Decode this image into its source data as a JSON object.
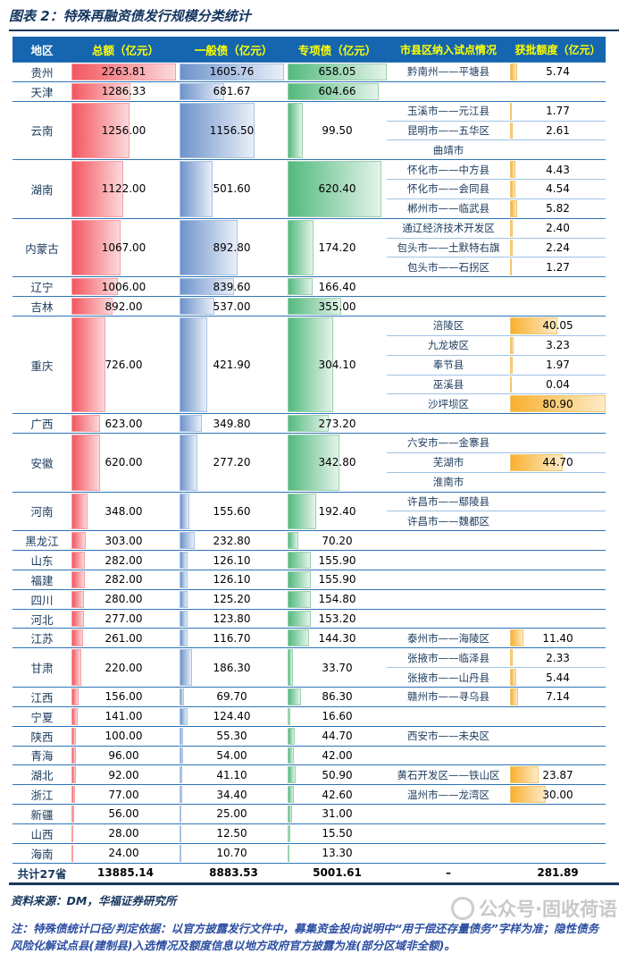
{
  "title": "图表 2：特殊再融资债发行规模分类统计",
  "columns": [
    "地区",
    "总额（亿元）",
    "一般债（亿元）",
    "专项债（亿元）",
    "市县区纳入试点情况",
    "获批额度（亿元）"
  ],
  "colors": {
    "header_bg": "#1566AF",
    "header_text": "#FFFF00",
    "header_first_text": "#FFFFFF",
    "total_bar": "#F3565F",
    "general_bar": "#6E93CB",
    "special_bar": "#52BA7E",
    "quota_bar": "#F9B02F",
    "row_divider": "#2E75B6",
    "sub_divider": "#9DC3E6",
    "title_color": "#14355F",
    "note_color": "#2B4EA2"
  },
  "chart_data": {
    "type": "table",
    "title": "图表 2：特殊再融资债发行规模分类统计",
    "bar_max": {
      "total": 2263.81,
      "general": 1605.76,
      "special": 658.05,
      "quota": 80.9
    },
    "regions": [
      {
        "name": "贵州",
        "total": "2263.81",
        "general": "1605.76",
        "special": "658.05",
        "pilots": [
          {
            "name": "黔南州——平塘县",
            "quota": "5.74"
          }
        ]
      },
      {
        "name": "天津",
        "total": "1286.33",
        "general": "681.67",
        "special": "604.66",
        "pilots": []
      },
      {
        "name": "云南",
        "total": "1256.00",
        "general": "1156.50",
        "special": "99.50",
        "pilots": [
          {
            "name": "玉溪市——元江县",
            "quota": "1.77"
          },
          {
            "name": "昆明市——五华区",
            "quota": "2.61"
          },
          {
            "name": "曲靖市",
            "quota": ""
          }
        ]
      },
      {
        "name": "湖南",
        "total": "1122.00",
        "general": "501.60",
        "special": "620.40",
        "pilots": [
          {
            "name": "怀化市——中方县",
            "quota": "4.43"
          },
          {
            "name": "怀化市——会同县",
            "quota": "4.54"
          },
          {
            "name": "郴州市——临武县",
            "quota": "5.82"
          }
        ]
      },
      {
        "name": "内蒙古",
        "total": "1067.00",
        "general": "892.80",
        "special": "174.20",
        "pilots": [
          {
            "name": "通辽经济技术开发区",
            "quota": "2.40"
          },
          {
            "name": "包头市——土默特右旗",
            "quota": "2.24"
          },
          {
            "name": "包头市——石拐区",
            "quota": "1.27"
          }
        ]
      },
      {
        "name": "辽宁",
        "total": "1006.00",
        "general": "839.60",
        "special": "166.40",
        "pilots": []
      },
      {
        "name": "吉林",
        "total": "892.00",
        "general": "537.00",
        "special": "355.00",
        "pilots": []
      },
      {
        "name": "重庆",
        "total": "726.00",
        "general": "421.90",
        "special": "304.10",
        "pilots": [
          {
            "name": "涪陵区",
            "quota": "40.05"
          },
          {
            "name": "九龙坡区",
            "quota": "3.23"
          },
          {
            "name": "奉节县",
            "quota": "1.97"
          },
          {
            "name": "巫溪县",
            "quota": "0.04"
          },
          {
            "name": "沙坪坝区",
            "quota": "80.90"
          }
        ]
      },
      {
        "name": "广西",
        "total": "623.00",
        "general": "349.80",
        "special": "273.20",
        "pilots": []
      },
      {
        "name": "安徽",
        "total": "620.00",
        "general": "277.20",
        "special": "342.80",
        "pilots": [
          {
            "name": "六安市——金寨县",
            "quota": ""
          },
          {
            "name": "芜湖市",
            "quota": "44.70"
          },
          {
            "name": "淮南市",
            "quota": ""
          }
        ]
      },
      {
        "name": "河南",
        "total": "348.00",
        "general": "155.60",
        "special": "192.40",
        "pilots": [
          {
            "name": "许昌市——鄢陵县",
            "quota": ""
          },
          {
            "name": "许昌市——魏都区",
            "quota": ""
          }
        ]
      },
      {
        "name": "黑龙江",
        "total": "303.00",
        "general": "232.80",
        "special": "70.20",
        "pilots": []
      },
      {
        "name": "山东",
        "total": "282.00",
        "general": "126.10",
        "special": "155.90",
        "pilots": []
      },
      {
        "name": "福建",
        "total": "282.00",
        "general": "126.10",
        "special": "155.90",
        "pilots": []
      },
      {
        "name": "四川",
        "total": "280.00",
        "general": "125.20",
        "special": "154.80",
        "pilots": []
      },
      {
        "name": "河北",
        "total": "277.00",
        "general": "123.80",
        "special": "153.20",
        "pilots": []
      },
      {
        "name": "江苏",
        "total": "261.00",
        "general": "116.70",
        "special": "144.30",
        "pilots": [
          {
            "name": "泰州市——海陵区",
            "quota": "11.40"
          }
        ]
      },
      {
        "name": "甘肃",
        "total": "220.00",
        "general": "186.30",
        "special": "33.70",
        "pilots": [
          {
            "name": "张掖市——临泽县",
            "quota": "2.33"
          },
          {
            "name": "张掖市——山丹县",
            "quota": "5.44"
          }
        ]
      },
      {
        "name": "江西",
        "total": "156.00",
        "general": "69.70",
        "special": "86.30",
        "pilots": [
          {
            "name": "赣州市——寻乌县",
            "quota": "7.14"
          }
        ]
      },
      {
        "name": "宁夏",
        "total": "141.00",
        "general": "124.40",
        "special": "16.60",
        "pilots": []
      },
      {
        "name": "陕西",
        "total": "100.00",
        "general": "55.30",
        "special": "44.70",
        "pilots": [
          {
            "name": "西安市——未央区",
            "quota": ""
          }
        ]
      },
      {
        "name": "青海",
        "total": "96.00",
        "general": "54.00",
        "special": "42.00",
        "pilots": []
      },
      {
        "name": "湖北",
        "total": "92.00",
        "general": "41.10",
        "special": "50.90",
        "pilots": [
          {
            "name": "黄石开发区——铁山区",
            "quota": "23.87"
          }
        ]
      },
      {
        "name": "浙江",
        "total": "77.00",
        "general": "34.40",
        "special": "42.60",
        "pilots": [
          {
            "name": "温州市——龙湾区",
            "quota": "30.00"
          }
        ]
      },
      {
        "name": "新疆",
        "total": "56.00",
        "general": "25.00",
        "special": "31.00",
        "pilots": []
      },
      {
        "name": "山西",
        "total": "28.00",
        "general": "12.50",
        "special": "15.50",
        "pilots": []
      },
      {
        "name": "海南",
        "total": "24.00",
        "general": "10.70",
        "special": "13.30",
        "pilots": []
      }
    ],
    "total_row": {
      "label": "共计27省",
      "total": "13885.14",
      "general": "8883.53",
      "special": "5001.61",
      "pilot": "–",
      "quota": "281.89"
    }
  },
  "source": "资料来源：DM，华福证券研究所",
  "note": "注：特殊债统计口径/判定依据：以官方披露发行文件中，募集资金投向说明中“用于偿还存量债务”字样为准；隐性债务风险化解试点县(建制县)入选情况及额度信息以地方政府官方披露为准(部分区域非全额)。",
  "watermark": "公众号·固收荷语"
}
